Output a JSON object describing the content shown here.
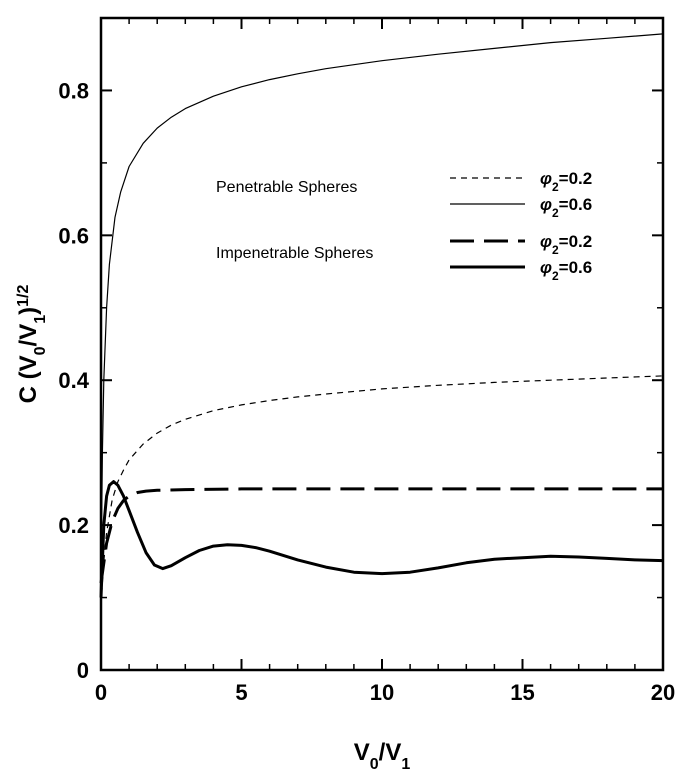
{
  "chart_data": {
    "type": "line",
    "xlabel": {
      "base": "V",
      "sub1": "0",
      "slash": "/",
      "base2": "V",
      "sub2": "1"
    },
    "ylabel": {
      "prefix": "C (V",
      "sub1": "0",
      "slash": "/V",
      "sub2": "1",
      "close": ")",
      "sup": "1/2"
    },
    "xlim": [
      0,
      20
    ],
    "ylim": [
      0,
      0.9
    ],
    "xticks": [
      0,
      5,
      10,
      15,
      20
    ],
    "xtick_labels": [
      "0",
      "5",
      "10",
      "15",
      "20"
    ],
    "yticks": [
      0,
      0.2,
      0.4,
      0.6,
      0.8
    ],
    "ytick_labels": [
      "0",
      "0.2",
      "0.4",
      "0.6",
      "0.8"
    ],
    "grid": false,
    "legend": {
      "placement": "upper-right",
      "groups": [
        {
          "title": "Penetrable Spheres",
          "entries": [
            "penetrable_02",
            "penetrable_06"
          ]
        },
        {
          "title": "Impenetrable Spheres",
          "entries": [
            "impenetrable_02",
            "impenetrable_06"
          ]
        }
      ]
    },
    "series": [
      {
        "id": "penetrable_02",
        "phi_symbol": "φ",
        "phi_sub": "2",
        "phi_value": "=0.2",
        "style": "short-dash-thin",
        "x": [
          0.0,
          0.1,
          0.2,
          0.4,
          0.6,
          0.8,
          1.0,
          1.5,
          2.0,
          2.5,
          3.0,
          4.0,
          5.0,
          6.0,
          7.0,
          8.0,
          10.0,
          12.0,
          14.0,
          16.0,
          18.0,
          20.0
        ],
        "y": [
          0.09,
          0.15,
          0.19,
          0.235,
          0.26,
          0.276,
          0.29,
          0.312,
          0.327,
          0.338,
          0.346,
          0.358,
          0.366,
          0.372,
          0.377,
          0.381,
          0.388,
          0.393,
          0.397,
          0.4,
          0.403,
          0.406
        ]
      },
      {
        "id": "penetrable_06",
        "phi_symbol": "φ",
        "phi_sub": "2",
        "phi_value": "=0.6",
        "style": "solid-thin",
        "x": [
          0.0,
          0.05,
          0.1,
          0.2,
          0.3,
          0.5,
          0.7,
          1.0,
          1.5,
          2.0,
          2.5,
          3.0,
          4.0,
          5.0,
          6.0,
          7.0,
          8.0,
          10.0,
          12.0,
          14.0,
          16.0,
          18.0,
          20.0
        ],
        "y": [
          0.12,
          0.3,
          0.4,
          0.5,
          0.56,
          0.625,
          0.66,
          0.695,
          0.727,
          0.748,
          0.763,
          0.775,
          0.792,
          0.805,
          0.815,
          0.823,
          0.83,
          0.841,
          0.85,
          0.858,
          0.866,
          0.872,
          0.878
        ]
      },
      {
        "id": "impenetrable_02",
        "phi_symbol": "φ",
        "phi_sub": "2",
        "phi_value": "=0.2",
        "style": "long-dash-thick",
        "x": [
          0.0,
          0.2,
          0.4,
          0.6,
          0.8,
          1.0,
          1.3,
          1.6,
          2.0,
          3.0,
          5.0,
          10.0,
          15.0,
          20.0
        ],
        "y": [
          0.12,
          0.175,
          0.205,
          0.223,
          0.234,
          0.24,
          0.245,
          0.247,
          0.248,
          0.249,
          0.25,
          0.25,
          0.25,
          0.25
        ]
      },
      {
        "id": "impenetrable_06",
        "phi_symbol": "φ",
        "phi_sub": "2",
        "phi_value": "=0.6",
        "style": "solid-thick",
        "x": [
          0.0,
          0.1,
          0.2,
          0.3,
          0.45,
          0.6,
          0.8,
          1.0,
          1.3,
          1.6,
          1.9,
          2.2,
          2.5,
          3.0,
          3.5,
          4.0,
          4.5,
          5.0,
          5.5,
          6.0,
          7.0,
          8.0,
          9.0,
          10.0,
          11.0,
          12.0,
          13.0,
          14.0,
          15.0,
          16.0,
          17.0,
          18.0,
          19.0,
          20.0
        ],
        "y": [
          0.1,
          0.2,
          0.24,
          0.255,
          0.26,
          0.255,
          0.24,
          0.22,
          0.19,
          0.162,
          0.145,
          0.14,
          0.144,
          0.155,
          0.165,
          0.171,
          0.173,
          0.172,
          0.169,
          0.164,
          0.152,
          0.142,
          0.135,
          0.133,
          0.135,
          0.141,
          0.148,
          0.153,
          0.155,
          0.157,
          0.156,
          0.154,
          0.152,
          0.151
        ]
      }
    ]
  }
}
